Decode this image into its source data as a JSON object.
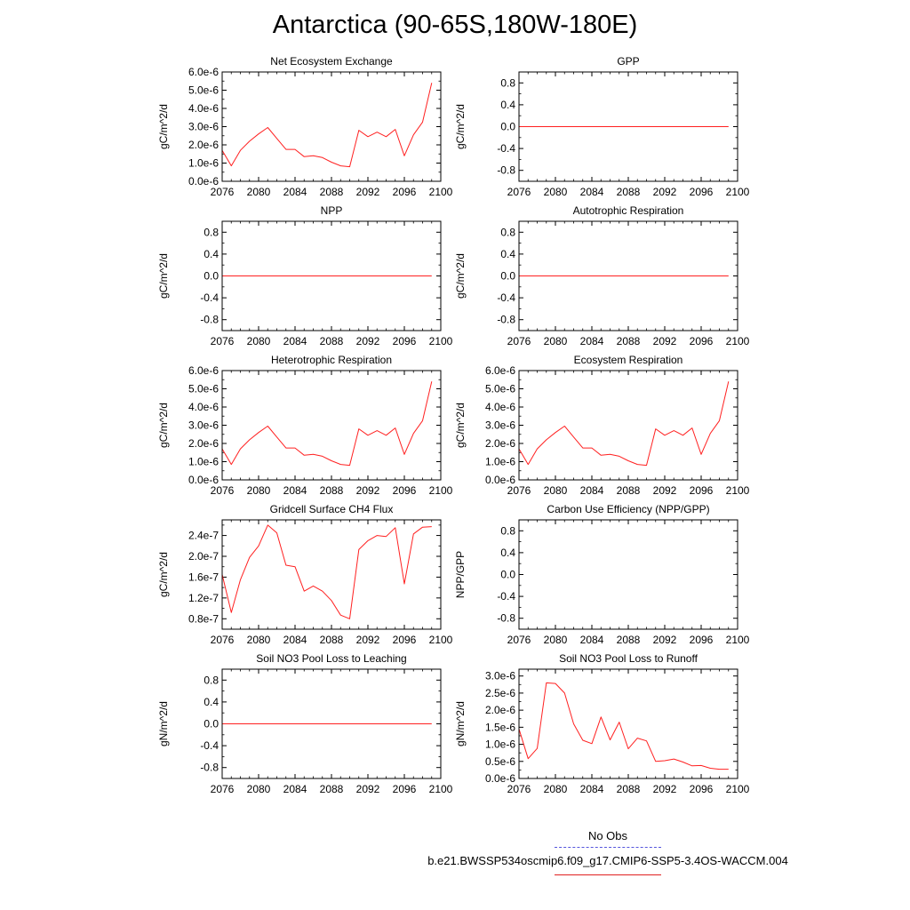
{
  "title": "Antarctica (90-65S,180W-180E)",
  "colors": {
    "model": "#ff2020",
    "obs": "#5555dd",
    "axis": "#000000"
  },
  "legend": {
    "obs_label": "No Obs",
    "model_label": "b.e21.BWSSP534oscmip6.f09_g17.CMIP6-SSP5-3.4OS-WACCM.004"
  },
  "chart_data": [
    {
      "type": "line",
      "title": "Net Ecosystem Exchange",
      "ylabel": "gC/m^2/d",
      "xlim": [
        2076,
        2100
      ],
      "xticks": [
        2076,
        2080,
        2084,
        2088,
        2092,
        2096,
        2100
      ],
      "xticklabels": [
        "2076",
        "2080",
        "2084",
        "2088",
        "2092",
        "2096",
        "2100"
      ],
      "ylim": [
        0,
        6e-06
      ],
      "yticks": [
        0,
        1e-06,
        2e-06,
        3e-06,
        4e-06,
        5e-06,
        6e-06
      ],
      "yticklabels": [
        "0.0e-6",
        "1.0e-6",
        "2.0e-6",
        "3.0e-6",
        "4.0e-6",
        "5.0e-6",
        "6.0e-6"
      ],
      "x": [
        2076,
        2077,
        2078,
        2079,
        2080,
        2081,
        2082,
        2083,
        2084,
        2085,
        2086,
        2087,
        2088,
        2089,
        2090,
        2091,
        2092,
        2093,
        2094,
        2095,
        2096,
        2097,
        2098,
        2099
      ],
      "y": [
        1.7e-06,
        8.5e-07,
        1.7e-06,
        2.2e-06,
        2.6e-06,
        2.95e-06,
        2.35e-06,
        1.75e-06,
        1.75e-06,
        1.35e-06,
        1.4e-06,
        1.3e-06,
        1.05e-06,
        8.5e-07,
        8e-07,
        2.8e-06,
        2.45e-06,
        2.7e-06,
        2.45e-06,
        2.85e-06,
        1.4e-06,
        2.55e-06,
        3.25e-06,
        5.4e-06
      ]
    },
    {
      "type": "line",
      "title": "GPP",
      "ylabel": "gC/m^2/d",
      "xlim": [
        2076,
        2100
      ],
      "xticks": [
        2076,
        2080,
        2084,
        2088,
        2092,
        2096,
        2100
      ],
      "xticklabels": [
        "2076",
        "2080",
        "2084",
        "2088",
        "2092",
        "2096",
        "2100"
      ],
      "ylim": [
        -1,
        1
      ],
      "yticks": [
        -0.8,
        -0.4,
        0,
        0.4,
        0.8
      ],
      "yticklabels": [
        "-0.8",
        "-0.4",
        "0.0",
        "0.4",
        "0.8"
      ],
      "x": [
        2076,
        2099
      ],
      "y": [
        0,
        0
      ]
    },
    {
      "type": "line",
      "title": "NPP",
      "ylabel": "gC/m^2/d",
      "xlim": [
        2076,
        2100
      ],
      "xticks": [
        2076,
        2080,
        2084,
        2088,
        2092,
        2096,
        2100
      ],
      "xticklabels": [
        "2076",
        "2080",
        "2084",
        "2088",
        "2092",
        "2096",
        "2100"
      ],
      "ylim": [
        -1,
        1
      ],
      "yticks": [
        -0.8,
        -0.4,
        0,
        0.4,
        0.8
      ],
      "yticklabels": [
        "-0.8",
        "-0.4",
        "0.0",
        "0.4",
        "0.8"
      ],
      "x": [
        2076,
        2099
      ],
      "y": [
        0,
        0
      ]
    },
    {
      "type": "line",
      "title": "Autotrophic Respiration",
      "ylabel": "gC/m^2/d",
      "xlim": [
        2076,
        2100
      ],
      "xticks": [
        2076,
        2080,
        2084,
        2088,
        2092,
        2096,
        2100
      ],
      "xticklabels": [
        "2076",
        "2080",
        "2084",
        "2088",
        "2092",
        "2096",
        "2100"
      ],
      "ylim": [
        -1,
        1
      ],
      "yticks": [
        -0.8,
        -0.4,
        0,
        0.4,
        0.8
      ],
      "yticklabels": [
        "-0.8",
        "-0.4",
        "0.0",
        "0.4",
        "0.8"
      ],
      "x": [
        2076,
        2099
      ],
      "y": [
        0,
        0
      ]
    },
    {
      "type": "line",
      "title": "Heterotrophic Respiration",
      "ylabel": "gC/m^2/d",
      "xlim": [
        2076,
        2100
      ],
      "xticks": [
        2076,
        2080,
        2084,
        2088,
        2092,
        2096,
        2100
      ],
      "xticklabels": [
        "2076",
        "2080",
        "2084",
        "2088",
        "2092",
        "2096",
        "2100"
      ],
      "ylim": [
        0,
        6e-06
      ],
      "yticks": [
        0,
        1e-06,
        2e-06,
        3e-06,
        4e-06,
        5e-06,
        6e-06
      ],
      "yticklabels": [
        "0.0e-6",
        "1.0e-6",
        "2.0e-6",
        "3.0e-6",
        "4.0e-6",
        "5.0e-6",
        "6.0e-6"
      ],
      "x": [
        2076,
        2077,
        2078,
        2079,
        2080,
        2081,
        2082,
        2083,
        2084,
        2085,
        2086,
        2087,
        2088,
        2089,
        2090,
        2091,
        2092,
        2093,
        2094,
        2095,
        2096,
        2097,
        2098,
        2099
      ],
      "y": [
        1.7e-06,
        8.5e-07,
        1.7e-06,
        2.2e-06,
        2.6e-06,
        2.95e-06,
        2.35e-06,
        1.75e-06,
        1.75e-06,
        1.35e-06,
        1.4e-06,
        1.3e-06,
        1.05e-06,
        8.5e-07,
        8e-07,
        2.8e-06,
        2.45e-06,
        2.7e-06,
        2.45e-06,
        2.85e-06,
        1.4e-06,
        2.55e-06,
        3.25e-06,
        5.4e-06
      ]
    },
    {
      "type": "line",
      "title": "Ecosystem Respiration",
      "ylabel": "gC/m^2/d",
      "xlim": [
        2076,
        2100
      ],
      "xticks": [
        2076,
        2080,
        2084,
        2088,
        2092,
        2096,
        2100
      ],
      "xticklabels": [
        "2076",
        "2080",
        "2084",
        "2088",
        "2092",
        "2096",
        "2100"
      ],
      "ylim": [
        0,
        6e-06
      ],
      "yticks": [
        0,
        1e-06,
        2e-06,
        3e-06,
        4e-06,
        5e-06,
        6e-06
      ],
      "yticklabels": [
        "0.0e-6",
        "1.0e-6",
        "2.0e-6",
        "3.0e-6",
        "4.0e-6",
        "5.0e-6",
        "6.0e-6"
      ],
      "x": [
        2076,
        2077,
        2078,
        2079,
        2080,
        2081,
        2082,
        2083,
        2084,
        2085,
        2086,
        2087,
        2088,
        2089,
        2090,
        2091,
        2092,
        2093,
        2094,
        2095,
        2096,
        2097,
        2098,
        2099
      ],
      "y": [
        1.7e-06,
        8.5e-07,
        1.7e-06,
        2.2e-06,
        2.6e-06,
        2.95e-06,
        2.35e-06,
        1.75e-06,
        1.75e-06,
        1.35e-06,
        1.4e-06,
        1.3e-06,
        1.05e-06,
        8.5e-07,
        8e-07,
        2.8e-06,
        2.45e-06,
        2.7e-06,
        2.45e-06,
        2.85e-06,
        1.4e-06,
        2.55e-06,
        3.25e-06,
        5.4e-06
      ]
    },
    {
      "type": "line",
      "title": "Gridcell Surface CH4 Flux",
      "ylabel": "gC/m^2/d",
      "xlim": [
        2076,
        2100
      ],
      "xticks": [
        2076,
        2080,
        2084,
        2088,
        2092,
        2096,
        2100
      ],
      "xticklabels": [
        "2076",
        "2080",
        "2084",
        "2088",
        "2092",
        "2096",
        "2100"
      ],
      "ylim": [
        6e-08,
        2.7e-07
      ],
      "yticks": [
        8e-08,
        1.2e-07,
        1.6e-07,
        2e-07,
        2.4e-07
      ],
      "yticklabels": [
        "0.8e-7",
        "1.2e-7",
        "1.6e-7",
        "2.0e-7",
        "2.4e-7"
      ],
      "x": [
        2076,
        2077,
        2078,
        2079,
        2080,
        2081,
        2082,
        2083,
        2084,
        2085,
        2086,
        2087,
        2088,
        2089,
        2090,
        2091,
        2092,
        2093,
        2094,
        2095,
        2096,
        2097,
        2098,
        2099
      ],
      "y": [
        1.65e-07,
        9.2e-08,
        1.55e-07,
        1.98e-07,
        2.2e-07,
        2.6e-07,
        2.45e-07,
        1.83e-07,
        1.8e-07,
        1.33e-07,
        1.43e-07,
        1.33e-07,
        1.15e-07,
        8.7e-08,
        8e-08,
        2.13e-07,
        2.3e-07,
        2.4e-07,
        2.38e-07,
        2.55e-07,
        1.47e-07,
        2.43e-07,
        2.56e-07,
        2.57e-07
      ]
    },
    {
      "type": "line",
      "title": "Carbon Use Efficiency (NPP/GPP)",
      "ylabel": "NPP/GPP",
      "xlim": [
        2076,
        2100
      ],
      "xticks": [
        2076,
        2080,
        2084,
        2088,
        2092,
        2096,
        2100
      ],
      "xticklabels": [
        "2076",
        "2080",
        "2084",
        "2088",
        "2092",
        "2096",
        "2100"
      ],
      "ylim": [
        -1,
        1
      ],
      "yticks": [
        -0.8,
        -0.4,
        0,
        0.4,
        0.8
      ],
      "yticklabels": [
        "-0.8",
        "-0.4",
        "0.0",
        "0.4",
        "0.8"
      ],
      "x": [],
      "y": []
    },
    {
      "type": "line",
      "title": "Soil NO3 Pool Loss to Leaching",
      "ylabel": "gN/m^2/d",
      "xlim": [
        2076,
        2100
      ],
      "xticks": [
        2076,
        2080,
        2084,
        2088,
        2092,
        2096,
        2100
      ],
      "xticklabels": [
        "2076",
        "2080",
        "2084",
        "2088",
        "2092",
        "2096",
        "2100"
      ],
      "ylim": [
        -1,
        1
      ],
      "yticks": [
        -0.8,
        -0.4,
        0,
        0.4,
        0.8
      ],
      "yticklabels": [
        "-0.8",
        "-0.4",
        "0.0",
        "0.4",
        "0.8"
      ],
      "x": [
        2076,
        2099
      ],
      "y": [
        0,
        0
      ]
    },
    {
      "type": "line",
      "title": "Soil NO3 Pool Loss to Runoff",
      "ylabel": "gN/m^2/d",
      "xlim": [
        2076,
        2100
      ],
      "xticks": [
        2076,
        2080,
        2084,
        2088,
        2092,
        2096,
        2100
      ],
      "xticklabels": [
        "2076",
        "2080",
        "2084",
        "2088",
        "2092",
        "2096",
        "2100"
      ],
      "ylim": [
        0,
        3.2e-06
      ],
      "yticks": [
        0,
        5e-07,
        1e-06,
        1.5e-06,
        2e-06,
        2.5e-06,
        3e-06
      ],
      "yticklabels": [
        "0.0e-6",
        "0.5e-6",
        "1.0e-6",
        "1.5e-6",
        "2.0e-6",
        "2.5e-6",
        "3.0e-6"
      ],
      "x": [
        2076,
        2077,
        2078,
        2079,
        2080,
        2081,
        2082,
        2083,
        2084,
        2085,
        2086,
        2087,
        2088,
        2089,
        2090,
        2091,
        2092,
        2093,
        2094,
        2095,
        2096,
        2097,
        2098,
        2099
      ],
      "y": [
        1.45e-06,
        5.8e-07,
        8.8e-07,
        2.8e-06,
        2.78e-06,
        2.5e-06,
        1.6e-06,
        1.12e-06,
        1.02e-06,
        1.8e-06,
        1.13e-06,
        1.65e-06,
        8.7e-07,
        1.18e-06,
        1.1e-06,
        5e-07,
        5.2e-07,
        5.7e-07,
        4.8e-07,
        3.7e-07,
        3.8e-07,
        3e-07,
        2.7e-07,
        2.7e-07
      ]
    }
  ]
}
